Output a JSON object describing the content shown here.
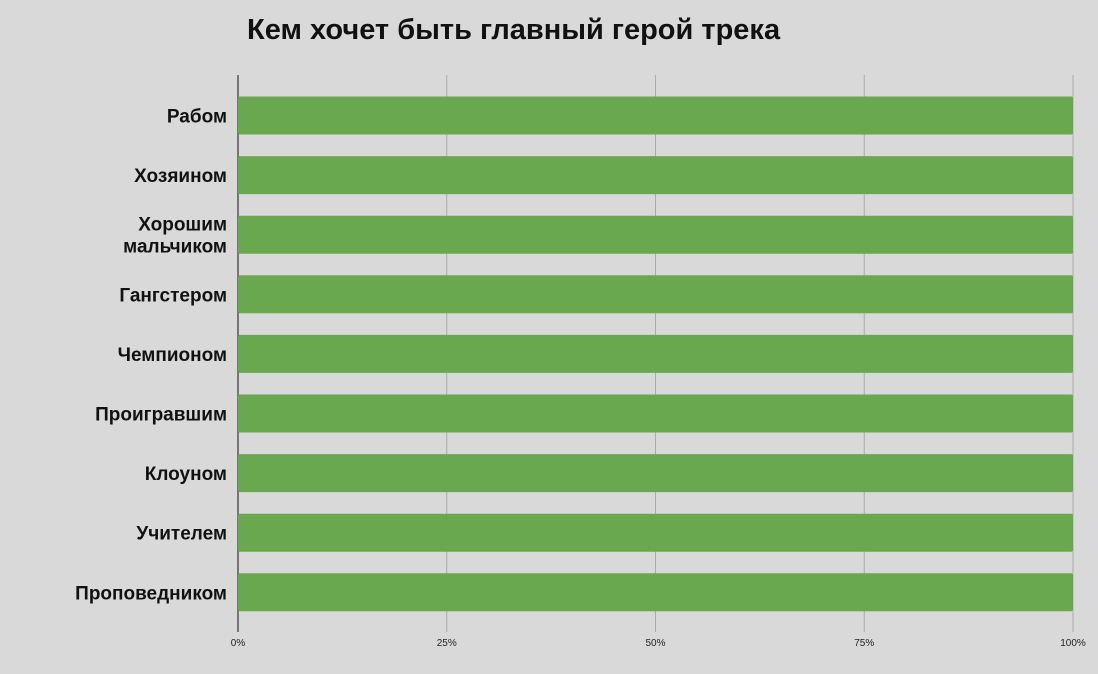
{
  "chart_data": {
    "type": "bar",
    "orientation": "horizontal",
    "title": "Кем хочет быть главный герой трека",
    "xlabel": "",
    "ylabel": "",
    "categories": [
      "Рабом",
      "Хозяином",
      "Хорошим мальчиком",
      "Гангстером",
      "Чемпионом",
      "Проигравшим",
      "Клоуном",
      "Учителем",
      "Проповедником"
    ],
    "values": [
      100,
      100,
      100,
      100,
      100,
      100,
      100,
      100,
      100
    ],
    "xlim": [
      0,
      100
    ],
    "x_ticks": [
      0,
      25,
      50,
      75,
      100
    ],
    "x_tick_labels": [
      "0%",
      "25%",
      "50%",
      "75%",
      "100%"
    ],
    "grid": true,
    "legend": "none",
    "colors": {
      "bar": "#6aa84f",
      "background": "#d9d9d9",
      "grid": "#aaaaaa",
      "axis": "#555555"
    }
  }
}
